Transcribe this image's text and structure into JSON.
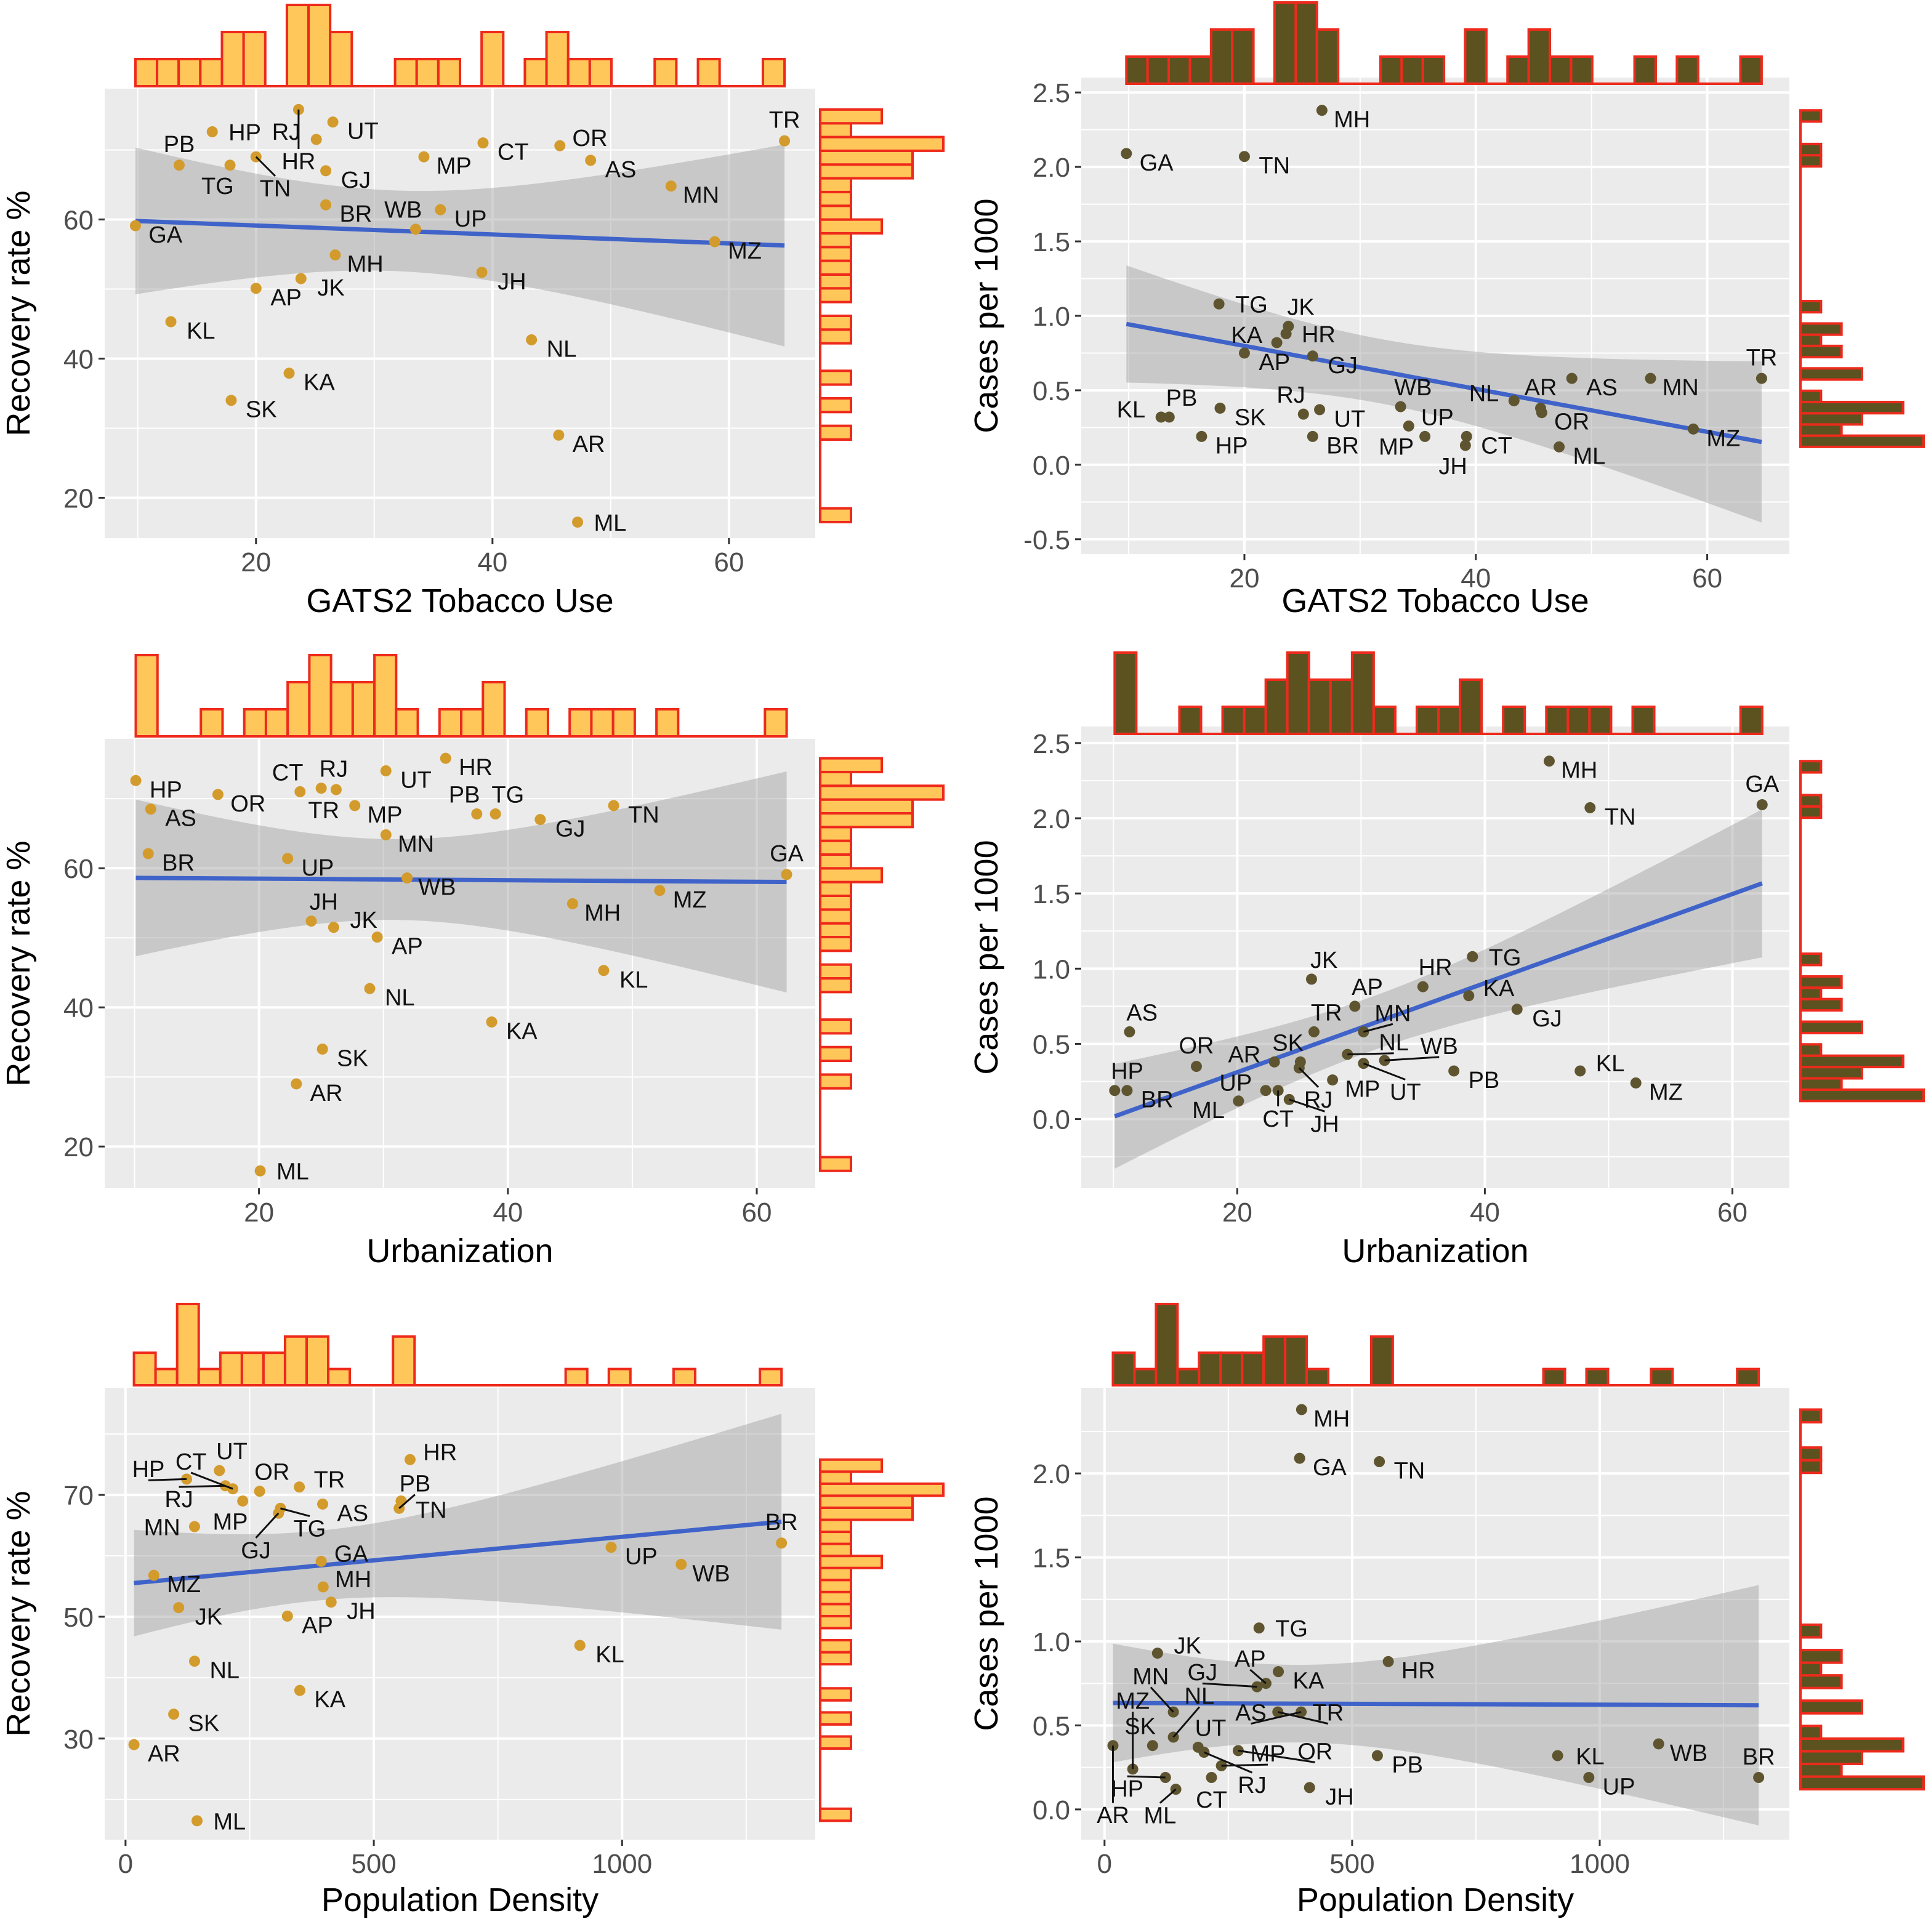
{
  "chart_data": {
    "type": "scatter",
    "states": [
      {
        "code": "GA",
        "tobacco": 9.8,
        "urbanization": 62.4,
        "density": 394,
        "recovery": 59.1,
        "cases": 2.09
      },
      {
        "code": "HP",
        "tobacco": 16.3,
        "urbanization": 10.1,
        "density": 123,
        "recovery": 72.6,
        "cases": 0.19
      },
      {
        "code": "PB",
        "tobacco": 13.5,
        "urbanization": 37.5,
        "density": 551,
        "recovery": 67.8,
        "cases": 0.32
      },
      {
        "code": "TG",
        "tobacco": 17.8,
        "urbanization": 39.0,
        "density": 312,
        "recovery": 67.8,
        "cases": 1.08
      },
      {
        "code": "TN",
        "tobacco": 20.0,
        "urbanization": 48.5,
        "density": 555,
        "recovery": 69.0,
        "cases": 2.07
      },
      {
        "code": "HR",
        "tobacco": 23.6,
        "urbanization": 35.0,
        "density": 573,
        "recovery": 75.8,
        "cases": 0.88
      },
      {
        "code": "UT",
        "tobacco": 26.5,
        "urbanization": 30.2,
        "density": 189,
        "recovery": 74.0,
        "cases": 0.37
      },
      {
        "code": "RJ",
        "tobacco": 25.1,
        "urbanization": 25.0,
        "density": 201,
        "recovery": 71.5,
        "cases": 0.34
      },
      {
        "code": "GJ",
        "tobacco": 25.9,
        "urbanization": 42.6,
        "density": 308,
        "recovery": 67.0,
        "cases": 0.73
      },
      {
        "code": "MP",
        "tobacco": 34.2,
        "urbanization": 27.7,
        "density": 236,
        "recovery": 69.0,
        "cases": 0.26
      },
      {
        "code": "CT",
        "tobacco": 39.2,
        "urbanization": 23.3,
        "density": 216,
        "recovery": 71.0,
        "cases": 0.19
      },
      {
        "code": "OR",
        "tobacco": 45.7,
        "urbanization": 16.7,
        "density": 270,
        "recovery": 70.6,
        "cases": 0.35
      },
      {
        "code": "AS",
        "tobacco": 48.3,
        "urbanization": 11.3,
        "density": 397,
        "recovery": 68.5,
        "cases": 0.58
      },
      {
        "code": "MN",
        "tobacco": 55.1,
        "urbanization": 30.2,
        "density": 139,
        "recovery": 64.8,
        "cases": 0.58
      },
      {
        "code": "TR",
        "tobacco": 64.7,
        "urbanization": 26.2,
        "density": 350,
        "recovery": 71.3,
        "cases": 0.58
      },
      {
        "code": "BR",
        "tobacco": 25.9,
        "urbanization": 11.1,
        "density": 1321,
        "recovery": 62.1,
        "cases": 0.19
      },
      {
        "code": "UP",
        "tobacco": 35.6,
        "urbanization": 22.3,
        "density": 978,
        "recovery": 61.4,
        "cases": 0.19
      },
      {
        "code": "WB",
        "tobacco": 33.5,
        "urbanization": 31.9,
        "density": 1119,
        "recovery": 58.6,
        "cases": 0.39
      },
      {
        "code": "MH",
        "tobacco": 26.7,
        "urbanization": 45.2,
        "density": 398,
        "recovery": 54.9,
        "cases": 2.38
      },
      {
        "code": "MZ",
        "tobacco": 58.8,
        "urbanization": 52.2,
        "density": 57,
        "recovery": 56.8,
        "cases": 0.24
      },
      {
        "code": "JK",
        "tobacco": 23.8,
        "urbanization": 26.0,
        "density": 107,
        "recovery": 51.5,
        "cases": 0.93
      },
      {
        "code": "JH",
        "tobacco": 39.1,
        "urbanization": 24.2,
        "density": 414,
        "recovery": 52.4,
        "cases": 0.13
      },
      {
        "code": "AP",
        "tobacco": 20.0,
        "urbanization": 29.5,
        "density": 326,
        "recovery": 50.1,
        "cases": 0.75
      },
      {
        "code": "KL",
        "tobacco": 12.8,
        "urbanization": 47.7,
        "density": 915,
        "recovery": 45.3,
        "cases": 0.32
      },
      {
        "code": "KA",
        "tobacco": 22.8,
        "urbanization": 38.7,
        "density": 351,
        "recovery": 37.9,
        "cases": 0.82
      },
      {
        "code": "SK",
        "tobacco": 17.9,
        "urbanization": 25.1,
        "density": 97,
        "recovery": 34.0,
        "cases": 0.38
      },
      {
        "code": "NL",
        "tobacco": 43.3,
        "urbanization": 28.9,
        "density": 139,
        "recovery": 42.7,
        "cases": 0.43
      },
      {
        "code": "AR",
        "tobacco": 45.6,
        "urbanization": 23.0,
        "density": 17,
        "recovery": 29.0,
        "cases": 0.38
      },
      {
        "code": "ML",
        "tobacco": 47.2,
        "urbanization": 20.1,
        "density": 144,
        "recovery": 16.5,
        "cases": 0.12
      }
    ],
    "panels": [
      {
        "x": "tobacco",
        "y": "recovery",
        "xlabel": "GATS2 Tobacco Use",
        "ylabel": "Recovery rate %",
        "xlim": [
          7.2,
          67.3
        ],
        "ylim": [
          14.2,
          78.8
        ],
        "xticks": [
          "20",
          "40",
          "60"
        ],
        "yticks": [
          "20",
          "40",
          "60"
        ],
        "scheme": "light",
        "trend": "slight negative"
      },
      {
        "x": "tobacco",
        "y": "cases",
        "xlabel": "GATS2 Tobacco Use",
        "ylabel": "Cases per 1000",
        "xlim": [
          5.9,
          67.1
        ],
        "ylim": [
          -0.6,
          2.6
        ],
        "xticks": [
          "20",
          "40",
          "60"
        ],
        "yticks": [
          "-0.5",
          "0.0",
          "0.5",
          "1.0",
          "1.5",
          "2.0",
          "2.5"
        ],
        "scheme": "dark",
        "trend": "negative"
      },
      {
        "x": "urbanization",
        "y": "recovery",
        "xlabel": "Urbanization",
        "ylabel": "Recovery rate %",
        "xlim": [
          7.6,
          64.7
        ],
        "ylim": [
          14,
          78.6
        ],
        "xticks": [
          "20",
          "40",
          "60"
        ],
        "yticks": [
          "20",
          "40",
          "60"
        ],
        "scheme": "light",
        "trend": "flat"
      },
      {
        "x": "urbanization",
        "y": "cases",
        "xlabel": "Urbanization",
        "ylabel": "Cases per 1000",
        "xlim": [
          7.4,
          64.6
        ],
        "ylim": [
          -0.46,
          2.61
        ],
        "xticks": [
          "20",
          "40",
          "60"
        ],
        "yticks": [
          "0.0",
          "0.5",
          "1.0",
          "1.5",
          "2.0",
          "2.5"
        ],
        "scheme": "dark",
        "trend": "positive"
      },
      {
        "x": "density",
        "y": "recovery",
        "xlabel": "Population Density",
        "ylabel": "Recovery rate %",
        "xlim": [
          -42,
          1389
        ],
        "ylim": [
          13.4,
          87.6
        ],
        "xticks": [
          "0",
          "500",
          "1000"
        ],
        "yticks": [
          "30",
          "50",
          "70"
        ],
        "scheme": "light",
        "trend": "positive"
      },
      {
        "x": "density",
        "y": "cases",
        "xlabel": "Population Density",
        "ylabel": "Cases per 1000",
        "xlim": [
          -47,
          1383
        ],
        "ylim": [
          -0.18,
          2.51
        ],
        "xticks": [
          "0",
          "500",
          "1000"
        ],
        "yticks": [
          "0.0",
          "0.5",
          "1.0",
          "1.5",
          "2.0"
        ],
        "scheme": "dark",
        "trend": "flat"
      }
    ],
    "grid": true,
    "marginal_histograms": true,
    "colors": {
      "panel_bg": "#EBEBEB",
      "grid": "#FFFFFF",
      "fit_line": "#3F63C9",
      "band": "#9E9E9E",
      "light_fill": "#FFC65A",
      "light_point": "#D39B2C",
      "dark_fill": "#5C5220",
      "dark_point": "#5E5530",
      "hist_border": "#EE2A1C"
    }
  }
}
